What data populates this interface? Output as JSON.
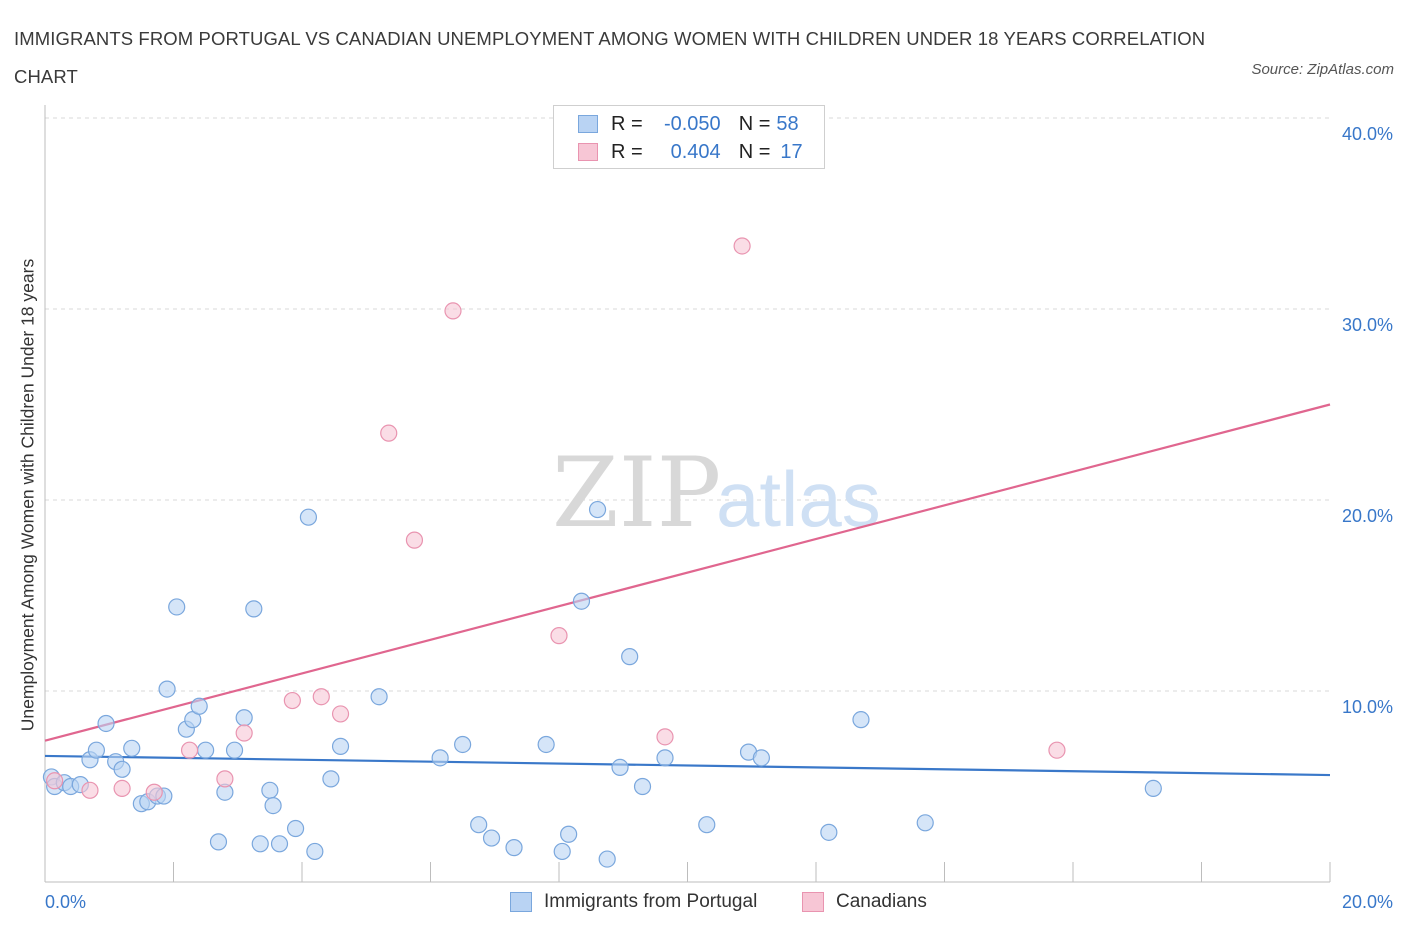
{
  "title": "IMMIGRANTS FROM PORTUGAL VS CANADIAN UNEMPLOYMENT AMONG WOMEN WITH CHILDREN UNDER 18 YEARS CORRELATION CHART",
  "source": "Source: ZipAtlas.com",
  "watermark": {
    "zip": "ZIP",
    "atlas": "atlas"
  },
  "legend_top": {
    "rows": [
      {
        "r_label": "R =",
        "r_value": "-0.050",
        "n_label": "N =",
        "n_value": "58"
      },
      {
        "r_label": "R =",
        "r_value": "0.404",
        "n_label": "N =",
        "n_value": "17"
      }
    ]
  },
  "colors": {
    "blue_fill": "#b9d3f3",
    "blue_stroke": "#7aa7dd",
    "blue_line": "#3a78c9",
    "pink_fill": "#f7c6d5",
    "pink_stroke": "#e994b0",
    "pink_line": "#e0668f",
    "grid": "#d9d9d9",
    "axis_text": "#3877c9"
  },
  "chart_data": {
    "type": "scatter",
    "title": "IMMIGRANTS FROM PORTUGAL VS CANADIAN UNEMPLOYMENT AMONG WOMEN WITH CHILDREN UNDER 18 YEARS CORRELATION CHART",
    "xlabel": "",
    "ylabel": "Unemployment Among Women with Children Under 18 years",
    "xlim": [
      0,
      20
    ],
    "ylim": [
      0,
      40
    ],
    "x_tick_labels": [
      "0.0%",
      "20.0%"
    ],
    "y_tick_labels": [
      "10.0%",
      "20.0%",
      "30.0%",
      "40.0%"
    ],
    "y_ticks": [
      10,
      20,
      30,
      40
    ],
    "legend_position": "top-center",
    "series": [
      {
        "name": "Immigrants from Portugal",
        "color": "#b9d3f3",
        "r": -0.05,
        "n": 58,
        "trend": {
          "x": [
            0,
            20
          ],
          "y": [
            6.6,
            5.6
          ]
        },
        "points": [
          [
            0.1,
            5.5
          ],
          [
            0.15,
            5.0
          ],
          [
            0.3,
            5.2
          ],
          [
            0.4,
            5.0
          ],
          [
            0.55,
            5.1
          ],
          [
            0.7,
            6.4
          ],
          [
            0.8,
            6.9
          ],
          [
            0.95,
            8.3
          ],
          [
            1.1,
            6.3
          ],
          [
            1.2,
            5.9
          ],
          [
            1.35,
            7.0
          ],
          [
            1.5,
            4.1
          ],
          [
            1.6,
            4.2
          ],
          [
            1.75,
            4.5
          ],
          [
            1.85,
            4.5
          ],
          [
            1.9,
            10.1
          ],
          [
            2.05,
            14.4
          ],
          [
            2.2,
            8.0
          ],
          [
            2.3,
            8.5
          ],
          [
            2.4,
            9.2
          ],
          [
            2.5,
            6.9
          ],
          [
            2.7,
            2.1
          ],
          [
            2.8,
            4.7
          ],
          [
            2.95,
            6.9
          ],
          [
            3.1,
            8.6
          ],
          [
            3.25,
            14.3
          ],
          [
            3.35,
            2.0
          ],
          [
            3.5,
            4.8
          ],
          [
            3.55,
            4.0
          ],
          [
            3.65,
            2.0
          ],
          [
            3.9,
            2.8
          ],
          [
            4.1,
            19.1
          ],
          [
            4.2,
            1.6
          ],
          [
            4.45,
            5.4
          ],
          [
            4.6,
            7.1
          ],
          [
            5.2,
            9.7
          ],
          [
            6.15,
            6.5
          ],
          [
            6.5,
            7.2
          ],
          [
            6.75,
            3.0
          ],
          [
            6.95,
            2.3
          ],
          [
            7.3,
            1.8
          ],
          [
            7.8,
            7.2
          ],
          [
            8.05,
            1.6
          ],
          [
            8.15,
            2.5
          ],
          [
            8.35,
            14.7
          ],
          [
            8.6,
            19.5
          ],
          [
            8.75,
            1.2
          ],
          [
            8.95,
            6.0
          ],
          [
            9.1,
            11.8
          ],
          [
            9.3,
            5.0
          ],
          [
            9.65,
            6.5
          ],
          [
            10.3,
            3.0
          ],
          [
            10.95,
            6.8
          ],
          [
            11.15,
            6.5
          ],
          [
            12.2,
            2.6
          ],
          [
            12.7,
            8.5
          ],
          [
            13.7,
            3.1
          ],
          [
            17.25,
            4.9
          ]
        ]
      },
      {
        "name": "Canadians",
        "color": "#f7c6d5",
        "r": 0.404,
        "n": 17,
        "trend": {
          "x": [
            0,
            20
          ],
          "y": [
            7.4,
            25.0
          ]
        },
        "points": [
          [
            0.15,
            5.3
          ],
          [
            0.7,
            4.8
          ],
          [
            1.2,
            4.9
          ],
          [
            1.7,
            4.7
          ],
          [
            2.25,
            6.9
          ],
          [
            2.8,
            5.4
          ],
          [
            3.1,
            7.8
          ],
          [
            3.85,
            9.5
          ],
          [
            4.3,
            9.7
          ],
          [
            4.6,
            8.8
          ],
          [
            5.35,
            23.5
          ],
          [
            5.75,
            17.9
          ],
          [
            6.35,
            29.9
          ],
          [
            8.0,
            12.9
          ],
          [
            9.65,
            7.6
          ],
          [
            10.85,
            33.3
          ],
          [
            15.75,
            6.9
          ]
        ]
      }
    ]
  },
  "bottom_legend": [
    {
      "label": "Immigrants from Portugal"
    },
    {
      "label": "Canadians"
    }
  ]
}
